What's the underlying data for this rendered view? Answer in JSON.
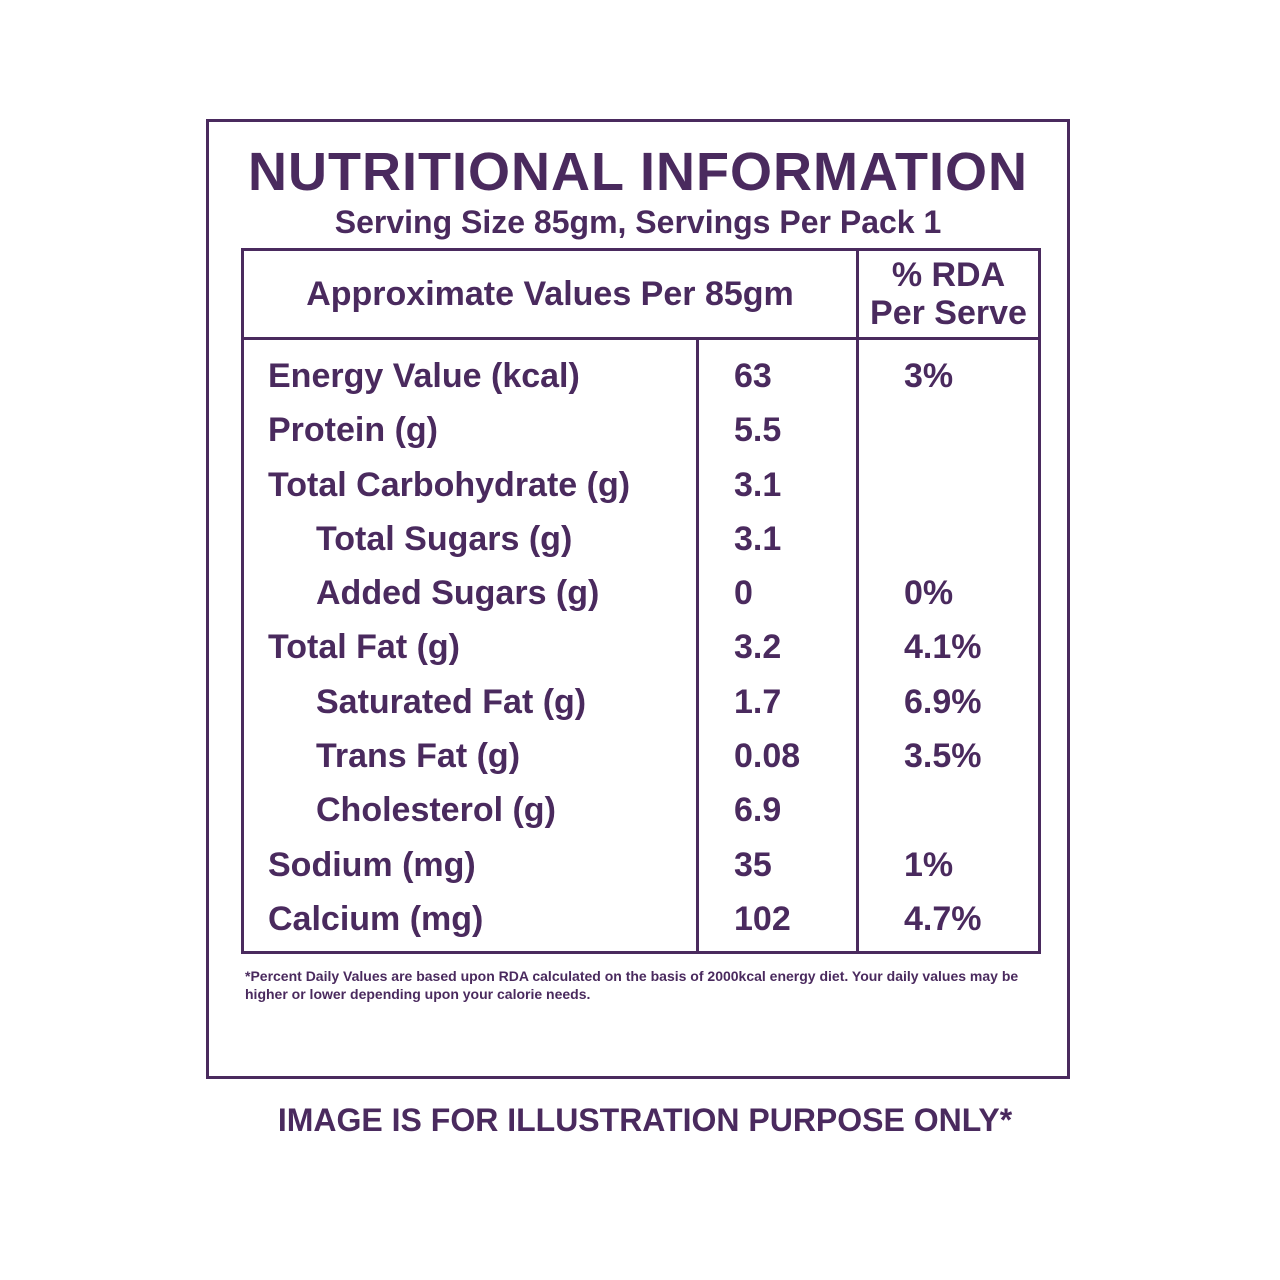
{
  "label": {
    "title": "NUTRITIONAL INFORMATION",
    "serving": "Serving Size 85gm, Servings Per Pack 1",
    "table": {
      "header_left": "Approximate Values Per 85gm",
      "header_right_line1": "% RDA",
      "header_right_line2": "Per Serve",
      "rows": [
        {
          "name": "Energy Value (kcal)",
          "amount": "63",
          "rda": "3%"
        },
        {
          "name": "Protein (g)",
          "amount": "5.5",
          "rda": ""
        },
        {
          "name": "Total Carbohydrate (g)",
          "amount": "3.1",
          "rda": ""
        },
        {
          "name": "Total Sugars (g)",
          "amount": "3.1",
          "rda": ""
        },
        {
          "name": "Added Sugars (g)",
          "amount": "0",
          "rda": "0%"
        },
        {
          "name": "Total Fat (g)",
          "amount": "3.2",
          "rda": "4.1%"
        },
        {
          "name": "Saturated Fat (g)",
          "amount": "1.7",
          "rda": "6.9%"
        },
        {
          "name": "Trans Fat (g)",
          "amount": "0.08",
          "rda": "3.5%"
        },
        {
          "name": "Cholesterol (g)",
          "amount": "6.9",
          "rda": ""
        },
        {
          "name": "Sodium (mg)",
          "amount": "35",
          "rda": "1%"
        },
        {
          "name": "Calcium (mg)",
          "amount": "102",
          "rda": "4.7%"
        }
      ]
    },
    "footnote": "*Percent Daily Values are based upon RDA calculated on the basis of 2000kcal energy diet. Your daily values may be higher or lower depending upon your calorie needs."
  },
  "disclaimer": "IMAGE IS FOR ILLUSTRATION PURPOSE ONLY*",
  "colors": {
    "ink": "#4a2a5e",
    "background": "#ffffff"
  }
}
